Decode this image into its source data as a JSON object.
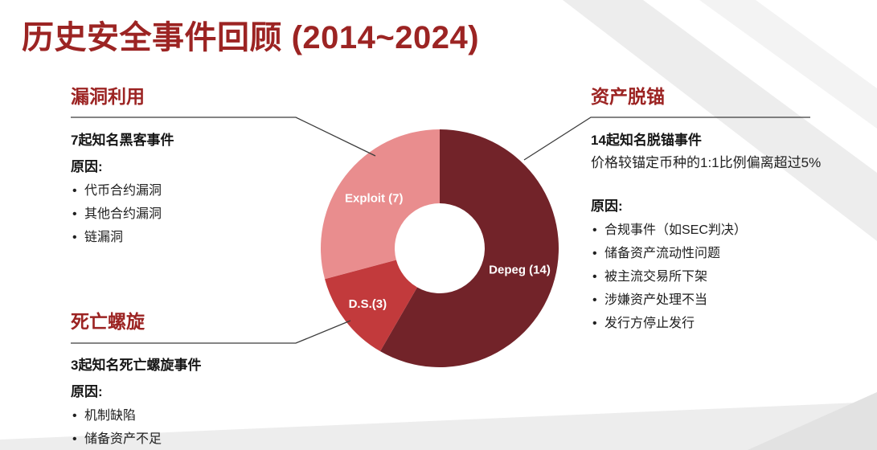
{
  "title": "历史安全事件回顾 (2014~2024)",
  "colors": {
    "title": "#9c2423",
    "heading": "#9c2423",
    "depeg": "#722329",
    "death_spiral": "#c23a3c",
    "exploit": "#e98d8e",
    "connector": "#3c3c3c"
  },
  "sections": {
    "exploit": {
      "heading": "漏洞利用",
      "subtitle": "7起知名黑客事件",
      "reason_label": "原因:",
      "bullets": [
        "代币合约漏洞",
        "其他合约漏洞",
        "链漏洞"
      ]
    },
    "death_spiral": {
      "heading": "死亡螺旋",
      "subtitle": "3起知名死亡螺旋事件",
      "reason_label": "原因:",
      "bullets": [
        "机制缺陷",
        "储备资产不足"
      ]
    },
    "depeg": {
      "heading": "资产脱锚",
      "subtitle": "14起知名脱锚事件",
      "description": "价格较锚定币种的1:1比例偏离超过5%",
      "reason_label": "原因:",
      "bullets": [
        "合规事件（如SEC判决）",
        "储备资产流动性问题",
        "被主流交易所下架",
        "涉嫌资产处理不当",
        "发行方停止发行"
      ]
    }
  },
  "chart_data": {
    "type": "pie",
    "donut": true,
    "title": "历史安全事件回顾 (2014~2024)",
    "start_angle_deg": 0,
    "direction": "clockwise",
    "total": 24,
    "segments": [
      {
        "label": "Depeg (14)",
        "category": "资产脱锚",
        "value": 14,
        "color": "#722329"
      },
      {
        "label": "D.S.(3)",
        "category": "死亡螺旋",
        "value": 3,
        "color": "#c23a3c"
      },
      {
        "label": "Exploit (7)",
        "category": "漏洞利用",
        "value": 7,
        "color": "#e98d8e"
      }
    ],
    "legend_position": "none",
    "labels_inside_slices": true
  }
}
